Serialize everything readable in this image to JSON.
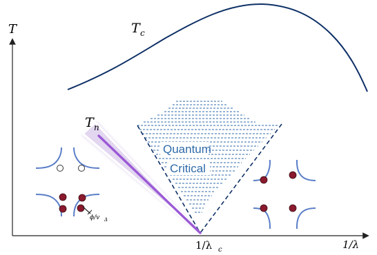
{
  "axes": {
    "y_label": "T",
    "x_label": "1/λ",
    "critical_point_label": "1/λ",
    "critical_point_subscript": "c"
  },
  "curves": {
    "tc_label": "T",
    "tc_subscript": "c",
    "tn_label": "T",
    "tn_subscript": "n"
  },
  "regions": {
    "qc_line1": "Quantum",
    "qc_line2": "Critical"
  },
  "insets": {
    "gap_label": "ϕ/v",
    "gap_subscript": "Δ"
  },
  "colors": {
    "tc_curve": "#0d2f66",
    "qc_dashes": "#2e6aa8",
    "tn_line": "#9b59d6",
    "tn_shade": "#c9b6e4",
    "fermi_arc": "#5a7ec8",
    "hot_spot": "#8b1a2e"
  }
}
